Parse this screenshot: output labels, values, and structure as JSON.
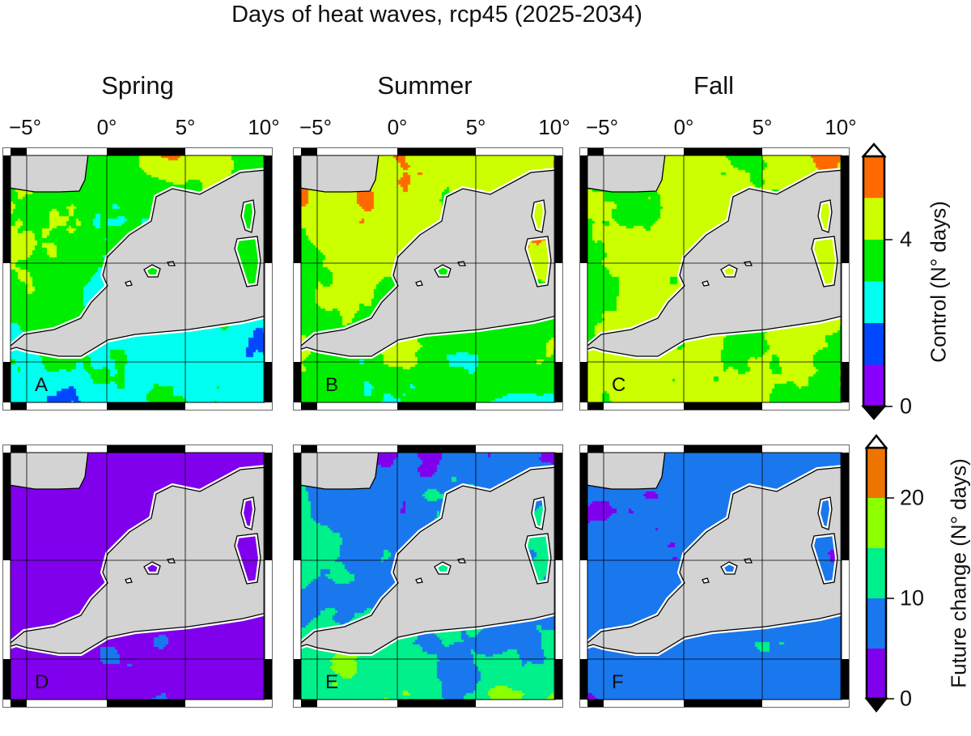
{
  "chart_data": {
    "type": "heatmap",
    "title": "Days of heat waves, rcp45 (2025-2034)",
    "columns": [
      "Spring",
      "Summer",
      "Fall"
    ],
    "lon_ticks": [
      "−5°",
      "0°",
      "5°",
      "10°"
    ],
    "rows": [
      {
        "colorbar": 0,
        "panels": [
          "A",
          "B",
          "C"
        ]
      },
      {
        "colorbar": 1,
        "panels": [
          "D",
          "E",
          "F"
        ]
      }
    ],
    "land_color": "#d3d3d3",
    "colorbars": [
      {
        "label": "Control (N° days)",
        "ticks": [
          {
            "value": 0,
            "label": "0"
          },
          {
            "value": 4,
            "label": "4"
          }
        ],
        "bin_edges": [
          0,
          1,
          2,
          3,
          4,
          5,
          6
        ],
        "colors": [
          "#8a00ff",
          "#0047ff",
          "#00fff0",
          "#00ee00",
          "#ccff00",
          "#ff6a00"
        ],
        "extend": "both"
      },
      {
        "label": "Future change (N° days)",
        "ticks": [
          {
            "value": 0,
            "label": "0"
          },
          {
            "value": 10,
            "label": "10"
          },
          {
            "value": 20,
            "label": "20"
          }
        ],
        "bin_edges": [
          0,
          5,
          10,
          15,
          20,
          25
        ],
        "colors": [
          "#8000ee",
          "#1a78ee",
          "#00f08c",
          "#8cff00",
          "#ee7400"
        ],
        "extend": "both"
      }
    ]
  }
}
